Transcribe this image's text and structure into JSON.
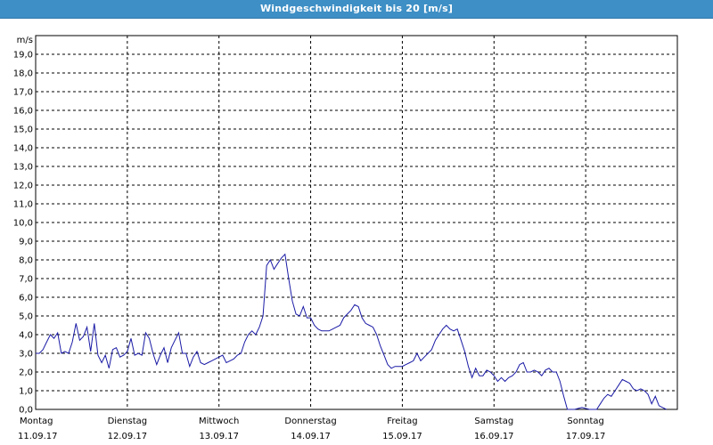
{
  "window": {
    "title": "Windgeschwindigkeit bis 20 [m/s]"
  },
  "colors": {
    "titlebar": "#3e8fc5",
    "series": "#1a1aa6",
    "grid": "#000000",
    "background": "#ffffff"
  },
  "chart_data": {
    "type": "line",
    "title": "Windgeschwindigkeit bis 20 [m/s]",
    "ylabel": "m/s",
    "xlabel": "",
    "ylim": [
      0,
      20
    ],
    "y_ticks": [
      "0,0",
      "1,0",
      "2,0",
      "3,0",
      "4,0",
      "5,0",
      "6,0",
      "7,0",
      "8,0",
      "9,0",
      "10,0",
      "11,0",
      "12,0",
      "13,0",
      "14,0",
      "15,0",
      "16,0",
      "17,0",
      "18,0",
      "19,0"
    ],
    "xlim_days": [
      0,
      7
    ],
    "x_ticks": [
      {
        "day": "Montag",
        "date": "11.09.17"
      },
      {
        "day": "Dienstag",
        "date": "12.09.17"
      },
      {
        "day": "Mittwoch",
        "date": "13.09.17"
      },
      {
        "day": "Donnerstag",
        "date": "14.09.17"
      },
      {
        "day": "Freitag",
        "date": "15.09.17"
      },
      {
        "day": "Samstag",
        "date": "16.09.17"
      },
      {
        "day": "Sonntag",
        "date": "17.09.17"
      }
    ],
    "grid": true,
    "legend": "none",
    "series": [
      {
        "points": [
          [
            0.0,
            3.0
          ],
          [
            0.04,
            3.0
          ],
          [
            0.08,
            3.2
          ],
          [
            0.12,
            3.6
          ],
          [
            0.16,
            4.0
          ],
          [
            0.2,
            3.8
          ],
          [
            0.24,
            4.1
          ],
          [
            0.28,
            3.0
          ],
          [
            0.32,
            3.1
          ],
          [
            0.36,
            3.0
          ],
          [
            0.4,
            3.6
          ],
          [
            0.44,
            4.6
          ],
          [
            0.48,
            3.7
          ],
          [
            0.52,
            3.9
          ],
          [
            0.56,
            4.4
          ],
          [
            0.6,
            3.1
          ],
          [
            0.64,
            4.6
          ],
          [
            0.68,
            2.9
          ],
          [
            0.72,
            2.5
          ],
          [
            0.76,
            2.9
          ],
          [
            0.8,
            2.2
          ],
          [
            0.84,
            3.2
          ],
          [
            0.88,
            3.3
          ],
          [
            0.92,
            2.8
          ],
          [
            0.96,
            2.9
          ],
          [
            1.0,
            3.1
          ],
          [
            1.04,
            3.8
          ],
          [
            1.08,
            2.9
          ],
          [
            1.12,
            3.0
          ],
          [
            1.16,
            2.9
          ],
          [
            1.2,
            4.1
          ],
          [
            1.24,
            3.8
          ],
          [
            1.28,
            3.0
          ],
          [
            1.32,
            2.4
          ],
          [
            1.36,
            2.9
          ],
          [
            1.4,
            3.3
          ],
          [
            1.44,
            2.5
          ],
          [
            1.48,
            3.3
          ],
          [
            1.52,
            3.7
          ],
          [
            1.56,
            4.1
          ],
          [
            1.6,
            3.0
          ],
          [
            1.64,
            3.0
          ],
          [
            1.68,
            2.3
          ],
          [
            1.72,
            2.8
          ],
          [
            1.76,
            3.1
          ],
          [
            1.8,
            2.5
          ],
          [
            1.84,
            2.4
          ],
          [
            1.88,
            2.5
          ],
          [
            1.92,
            2.6
          ],
          [
            1.96,
            2.7
          ],
          [
            2.0,
            2.8
          ],
          [
            2.04,
            2.9
          ],
          [
            2.08,
            2.5
          ],
          [
            2.12,
            2.6
          ],
          [
            2.16,
            2.7
          ],
          [
            2.2,
            2.9
          ],
          [
            2.24,
            3.0
          ],
          [
            2.28,
            3.6
          ],
          [
            2.32,
            4.0
          ],
          [
            2.36,
            4.2
          ],
          [
            2.4,
            4.0
          ],
          [
            2.44,
            4.4
          ],
          [
            2.48,
            5.0
          ],
          [
            2.52,
            7.7
          ],
          [
            2.56,
            8.0
          ],
          [
            2.6,
            7.5
          ],
          [
            2.64,
            7.8
          ],
          [
            2.68,
            8.1
          ],
          [
            2.72,
            8.3
          ],
          [
            2.76,
            7.0
          ],
          [
            2.8,
            5.8
          ],
          [
            2.84,
            5.1
          ],
          [
            2.88,
            5.0
          ],
          [
            2.92,
            5.5
          ],
          [
            2.96,
            4.9
          ],
          [
            3.0,
            4.9
          ],
          [
            3.04,
            4.5
          ],
          [
            3.08,
            4.3
          ],
          [
            3.12,
            4.2
          ],
          [
            3.16,
            4.2
          ],
          [
            3.2,
            4.2
          ],
          [
            3.24,
            4.3
          ],
          [
            3.28,
            4.4
          ],
          [
            3.32,
            4.5
          ],
          [
            3.36,
            4.9
          ],
          [
            3.4,
            5.1
          ],
          [
            3.44,
            5.3
          ],
          [
            3.48,
            5.6
          ],
          [
            3.52,
            5.5
          ],
          [
            3.56,
            4.9
          ],
          [
            3.6,
            4.6
          ],
          [
            3.64,
            4.5
          ],
          [
            3.68,
            4.4
          ],
          [
            3.72,
            4.0
          ],
          [
            3.76,
            3.4
          ],
          [
            3.8,
            2.9
          ],
          [
            3.84,
            2.4
          ],
          [
            3.88,
            2.2
          ],
          [
            3.92,
            2.3
          ],
          [
            3.96,
            2.3
          ],
          [
            4.0,
            2.3
          ],
          [
            4.04,
            2.4
          ],
          [
            4.08,
            2.5
          ],
          [
            4.12,
            2.6
          ],
          [
            4.16,
            3.0
          ],
          [
            4.2,
            2.6
          ],
          [
            4.24,
            2.8
          ],
          [
            4.28,
            3.0
          ],
          [
            4.32,
            3.2
          ],
          [
            4.36,
            3.7
          ],
          [
            4.4,
            4.0
          ],
          [
            4.44,
            4.3
          ],
          [
            4.48,
            4.5
          ],
          [
            4.52,
            4.3
          ],
          [
            4.56,
            4.2
          ],
          [
            4.6,
            4.3
          ],
          [
            4.64,
            3.7
          ],
          [
            4.68,
            3.1
          ],
          [
            4.72,
            2.3
          ],
          [
            4.76,
            1.7
          ],
          [
            4.8,
            2.2
          ],
          [
            4.84,
            1.8
          ],
          [
            4.88,
            1.8
          ],
          [
            4.92,
            2.1
          ],
          [
            4.96,
            2.0
          ],
          [
            5.0,
            1.8
          ],
          [
            5.04,
            1.5
          ],
          [
            5.08,
            1.7
          ],
          [
            5.12,
            1.5
          ],
          [
            5.16,
            1.7
          ],
          [
            5.2,
            1.8
          ],
          [
            5.24,
            2.0
          ],
          [
            5.28,
            2.4
          ],
          [
            5.32,
            2.5
          ],
          [
            5.36,
            2.0
          ],
          [
            5.4,
            2.0
          ],
          [
            5.44,
            2.1
          ],
          [
            5.48,
            2.0
          ],
          [
            5.52,
            1.8
          ],
          [
            5.56,
            2.1
          ],
          [
            5.6,
            2.2
          ],
          [
            5.64,
            2.0
          ],
          [
            5.68,
            2.0
          ],
          [
            5.72,
            1.5
          ],
          [
            5.76,
            0.7
          ],
          [
            5.8,
            0.0
          ],
          [
            5.84,
            0.0
          ],
          [
            5.88,
            0.0
          ],
          [
            5.92,
            0.05
          ],
          [
            5.96,
            0.1
          ],
          [
            6.0,
            0.05
          ],
          [
            6.04,
            0.0
          ],
          [
            6.08,
            0.0
          ],
          [
            6.12,
            0.0
          ],
          [
            6.16,
            0.3
          ],
          [
            6.2,
            0.6
          ],
          [
            6.24,
            0.8
          ],
          [
            6.28,
            0.7
          ],
          [
            6.32,
            1.0
          ],
          [
            6.36,
            1.3
          ],
          [
            6.4,
            1.6
          ],
          [
            6.44,
            1.5
          ],
          [
            6.48,
            1.4
          ],
          [
            6.52,
            1.1
          ],
          [
            6.56,
            1.0
          ],
          [
            6.6,
            1.1
          ],
          [
            6.64,
            1.0
          ],
          [
            6.68,
            0.8
          ],
          [
            6.72,
            0.3
          ],
          [
            6.76,
            0.7
          ],
          [
            6.8,
            0.2
          ],
          [
            6.84,
            0.1
          ],
          [
            6.88,
            0.0
          ]
        ]
      }
    ]
  }
}
